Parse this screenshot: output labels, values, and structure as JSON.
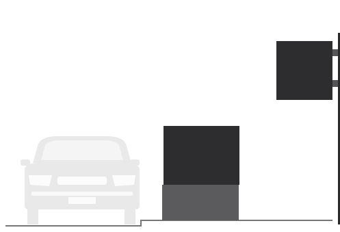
{
  "scene": {
    "vehicle": {
      "icon": "car-front-icon"
    },
    "cabinet_upper": {
      "icon": "box-icon"
    },
    "cabinet_base": {
      "icon": "base-block-icon"
    },
    "wall_box": {
      "icon": "wall-mounted-box-icon"
    },
    "pole": {
      "icon": "vertical-pole-icon"
    },
    "ground": {
      "icon": "ground-line-icon"
    }
  },
  "colors": {
    "background": "#ffffff",
    "car": "#e9e9e9",
    "car_detail": "#ffffff",
    "cabinet_upper": "#2d2d2f",
    "cabinet_base": "#5b5b5d",
    "wall_box": "#2d2d2f",
    "pole": "#2a2a2a",
    "bracket": "#555555",
    "ground": "#777777"
  }
}
